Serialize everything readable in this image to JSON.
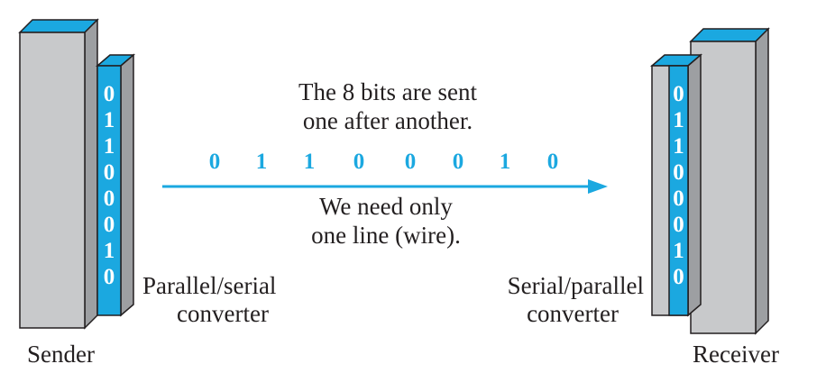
{
  "caption": {
    "top_line1": "The 8 bits are sent",
    "top_line2": "one after another.",
    "bottom_line1": "We need only",
    "bottom_line2": "one line (wire)."
  },
  "stream_bits": [
    "0",
    "1",
    "1",
    "0",
    "0",
    "0",
    "1",
    "0"
  ],
  "sender": {
    "label": "Sender",
    "converter_line1": "Parallel/serial",
    "converter_line2": "converter",
    "register_bits": [
      "0",
      "1",
      "1",
      "0",
      "0",
      "0",
      "1",
      "0"
    ]
  },
  "receiver": {
    "label": "Receiver",
    "converter_line1": "Serial/parallel",
    "converter_line2": "converter",
    "register_bits": [
      "0",
      "1",
      "1",
      "0",
      "0",
      "0",
      "1",
      "0"
    ]
  },
  "colors": {
    "accent": "#1ba8e0",
    "panel_gray": "#c8c9cb",
    "panel_shade": "#9d9fa2",
    "outline": "#231f20"
  }
}
